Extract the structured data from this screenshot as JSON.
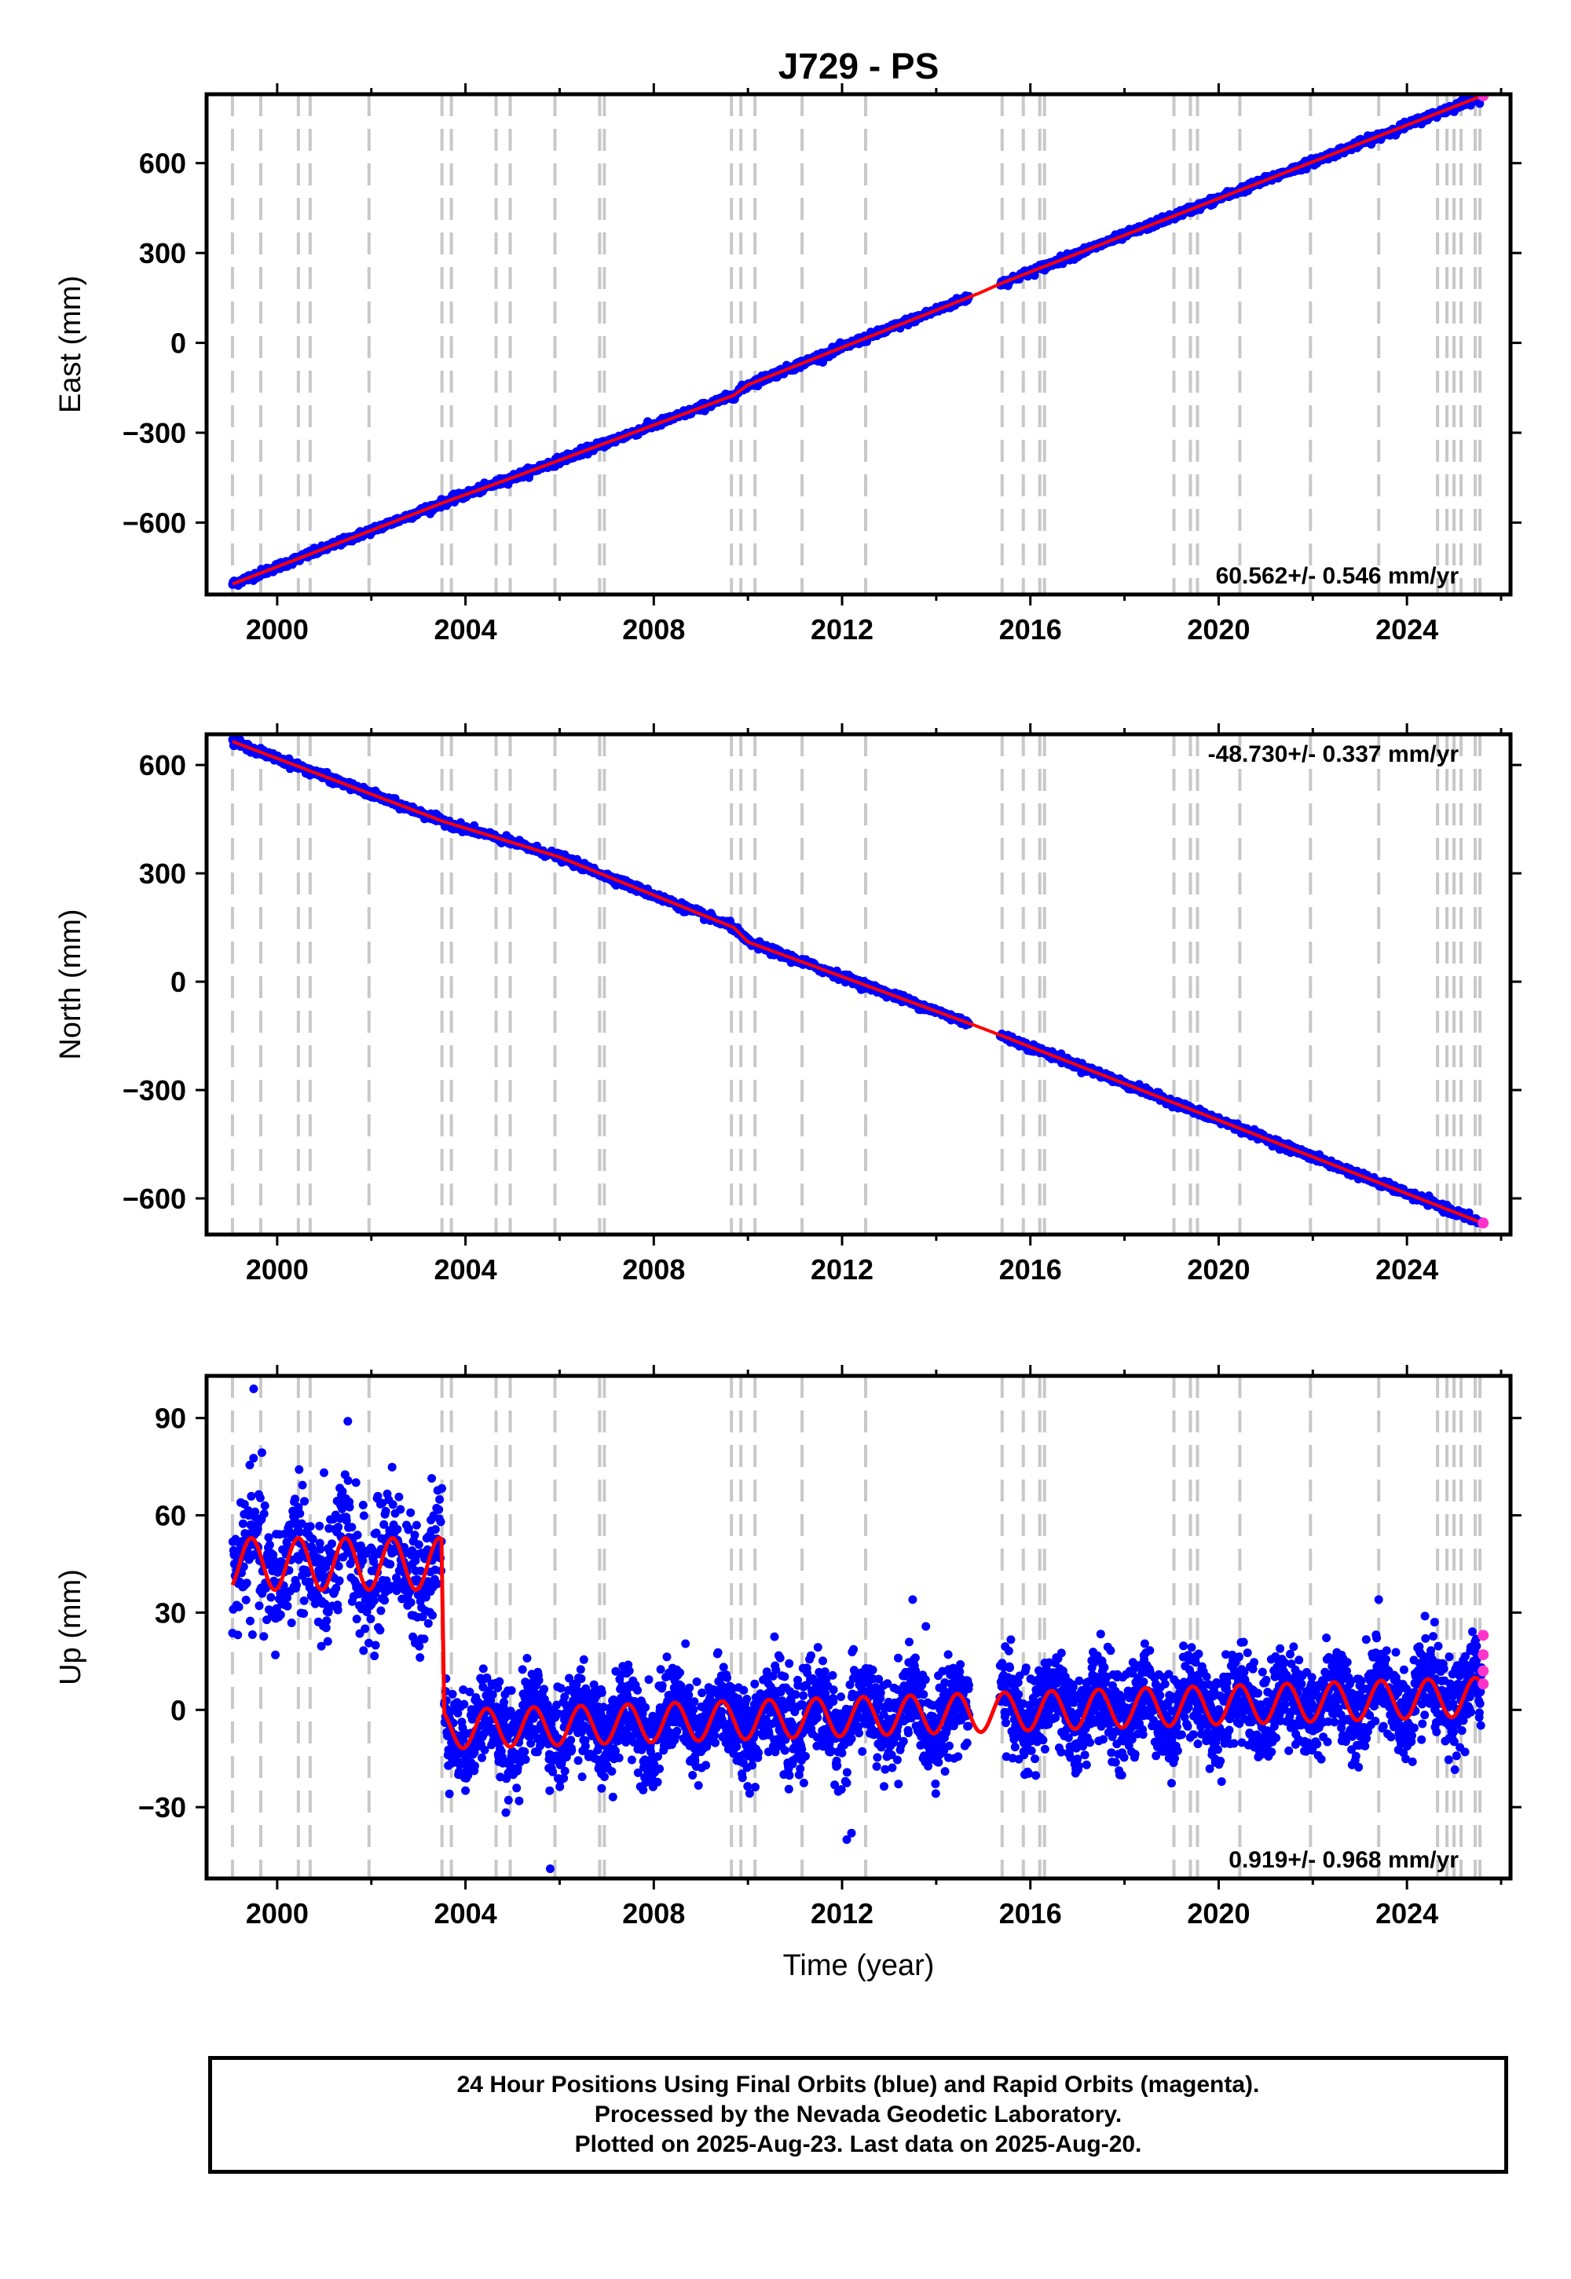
{
  "title": "J729 - PS",
  "colors": {
    "final": "#0000ff",
    "rapid": "#ff33cc",
    "model": "#ff0000",
    "event_line": "#c8c8c8"
  },
  "x_axis": {
    "label": "Time (year)",
    "range": [
      1998.5,
      2026.2
    ],
    "ticks": [
      2000,
      2004,
      2008,
      2012,
      2016,
      2020,
      2024
    ],
    "tick_labels": [
      "2000",
      "2004",
      "2008",
      "2012",
      "2016",
      "2020",
      "2024"
    ],
    "minor_ticks": [
      2002,
      2006,
      2010,
      2014,
      2018,
      2022,
      2026
    ]
  },
  "event_lines": [
    1999.05,
    1999.65,
    2000.45,
    2000.7,
    2001.95,
    2003.5,
    2003.7,
    2004.65,
    2004.95,
    2005.9,
    2006.85,
    2006.95,
    2009.65,
    2009.85,
    2010.15,
    2011.15,
    2012.5,
    2015.4,
    2015.85,
    2016.2,
    2016.3,
    2019.05,
    2019.4,
    2019.55,
    2020.45,
    2021.95,
    2023.4,
    2024.65,
    2024.85,
    2025.0,
    2025.15,
    2025.45,
    2025.55
  ],
  "panels": [
    {
      "ylabel": "East (mm)",
      "ylim": [
        -840,
        830
      ],
      "yticks": [
        -600,
        -300,
        0,
        300,
        600
      ],
      "ytick_labels": [
        "−600",
        "−300",
        "0",
        "300",
        "600"
      ],
      "rate_text": "60.562+/- 0.546 mm/yr",
      "rate_position": "bottom-right"
    },
    {
      "ylabel": "North (mm)",
      "ylim": [
        -700,
        685
      ],
      "yticks": [
        -600,
        -300,
        0,
        300,
        600
      ],
      "ytick_labels": [
        "−600",
        "−300",
        "0",
        "300",
        "600"
      ],
      "rate_text": "-48.730+/- 0.337 mm/yr",
      "rate_position": "top-right"
    },
    {
      "ylabel": "Up (mm)",
      "ylim": [
        -52,
        103
      ],
      "yticks": [
        -30,
        0,
        30,
        60,
        90
      ],
      "ytick_labels": [
        "−30",
        "0",
        "30",
        "60",
        "90"
      ],
      "rate_text": "0.919+/- 0.968 mm/yr",
      "rate_position": "bottom-right"
    }
  ],
  "chart_data": {
    "type": "scatter",
    "title": "J729 - PS",
    "xlabel": "Time (year)",
    "xlim": [
      1998.5,
      2026.2
    ],
    "series_east": {
      "ylabel": "East (mm)",
      "model_line_x": [
        1999.05,
        2003.5,
        2005.0,
        2009.7,
        2010.0,
        2014.9,
        2015.4,
        2025.6
      ],
      "model_line_y": [
        -805,
        -535,
        -450,
        -175,
        -140,
        165,
        200,
        825
      ],
      "rate": "60.562+/- 0.546 mm/yr"
    },
    "series_north": {
      "ylabel": "North (mm)",
      "model_line_x": [
        1999.05,
        2003.5,
        2006.0,
        2009.7,
        2010.0,
        2014.9,
        2015.4,
        2025.6
      ],
      "model_line_y": [
        665,
        445,
        345,
        150,
        110,
        -125,
        -150,
        -668
      ],
      "rate": "-48.730+/- 0.337 mm/yr"
    },
    "series_up": {
      "ylabel": "Up (mm)",
      "pre_2003_5": {
        "x_range": [
          1999.05,
          2003.5
        ],
        "mean": 45,
        "scatter": 10,
        "seasonal_amplitude": 8
      },
      "post_2003_5": {
        "x_range": [
          2003.55,
          2025.6
        ],
        "mean_start": -6,
        "mean_end": 4,
        "scatter": 7,
        "seasonal_amplitude": 6
      },
      "offset_at": 2003.5,
      "outliers": [
        [
          1999.5,
          99
        ],
        [
          2001.5,
          89
        ],
        [
          2005.8,
          -49
        ],
        [
          2013.5,
          34
        ],
        [
          2023.4,
          34
        ],
        [
          2012.1,
          -40
        ],
        [
          2012.2,
          -38
        ]
      ],
      "rate": "0.919+/- 0.968 mm/yr"
    },
    "legend": []
  },
  "footer": {
    "line1": "24 Hour Positions Using Final Orbits (blue) and Rapid Orbits (magenta).",
    "line2": "Processed by the Nevada Geodetic Laboratory.",
    "line3": "Plotted on 2025-Aug-23. Last data on 2025-Aug-20."
  }
}
